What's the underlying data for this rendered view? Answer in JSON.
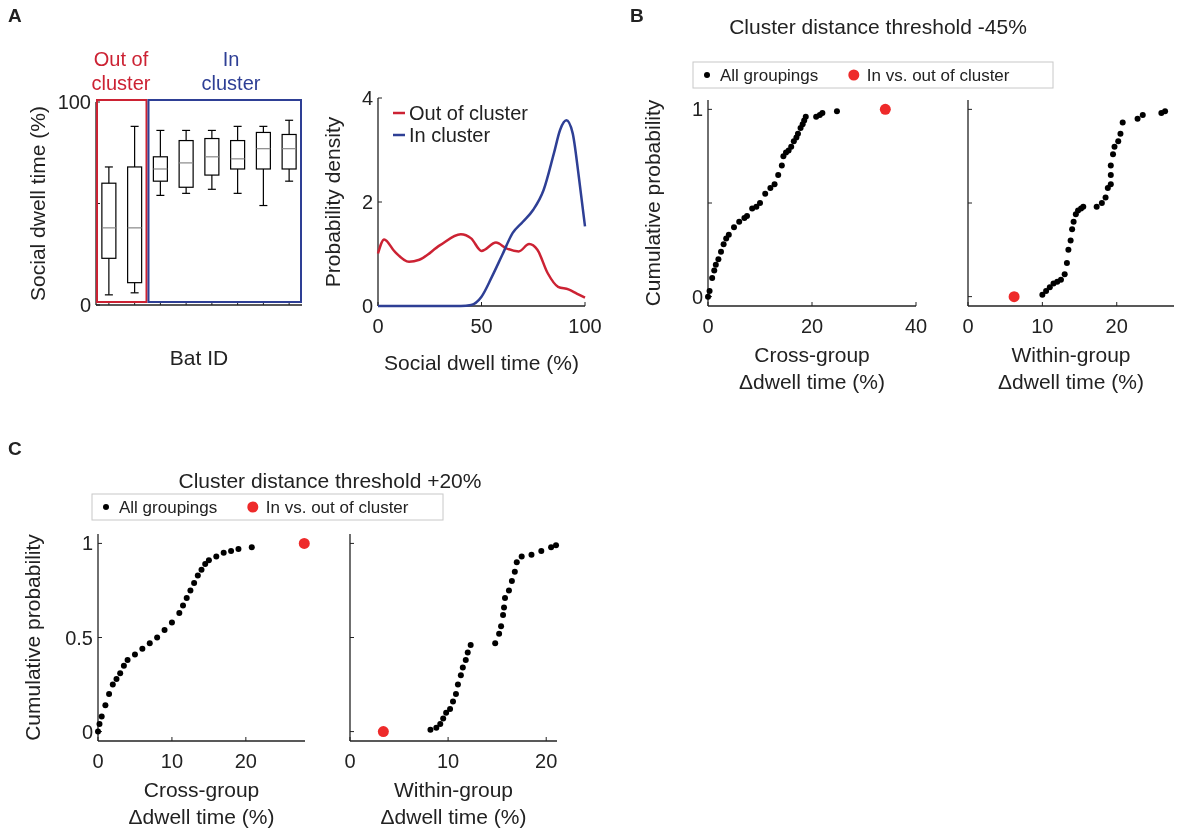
{
  "chart_data": [
    {
      "type": "box",
      "xlabel": "Bat ID",
      "ylabel": "Social dwell time (%)",
      "annotations": [
        "A",
        "Out of cluster",
        "In cluster"
      ],
      "categories": [
        null,
        null,
        null,
        null,
        null,
        null,
        null,
        null
      ],
      "ylim": [
        0,
        100
      ],
      "yticks": [
        0,
        {
          "value": 50,
          "label": null
        },
        100
      ],
      "boxes": [
        {
          "low": 5,
          "q1": 23,
          "median": 38,
          "q3": 60,
          "high": 68
        },
        {
          "low": 6,
          "q1": 11,
          "median": 38,
          "q3": 68,
          "high": 88
        },
        {
          "low": 54,
          "q1": 61,
          "median": 67,
          "q3": 73,
          "high": 86
        },
        {
          "low": 55,
          "q1": 58,
          "median": 70,
          "q3": 81,
          "high": 86
        },
        {
          "low": 57,
          "q1": 64,
          "median": 73,
          "q3": 82,
          "high": 86
        },
        {
          "low": 55,
          "q1": 67,
          "median": 72,
          "q3": 81,
          "high": 88
        },
        {
          "low": 49,
          "q1": 67,
          "median": 77,
          "q3": 85,
          "high": 88
        },
        {
          "low": 61,
          "q1": 67,
          "median": 77,
          "q3": 84,
          "high": 91
        }
      ]
    },
    {
      "type": "line",
      "xlabel": "Social dwell time (%)",
      "ylabel": "Probability density",
      "xlim": [
        0,
        100
      ],
      "ylim": [
        0,
        4
      ],
      "xticks": [
        0,
        50,
        100
      ],
      "yticks": [
        0,
        2,
        4
      ],
      "legend": "top",
      "series": [
        {
          "name": "Out of cluster",
          "color": "#cc2233",
          "x": [
            0,
            3,
            8,
            15,
            20,
            30,
            40,
            45,
            50,
            57,
            62,
            68,
            73,
            77,
            82,
            87,
            92,
            96,
            100
          ],
          "values": [
            1.01,
            1.28,
            1.05,
            0.85,
            0.89,
            1.17,
            1.38,
            1.3,
            1.06,
            1.22,
            1.11,
            1.05,
            1.19,
            1.08,
            0.63,
            0.37,
            0.32,
            0.24,
            0.16
          ]
        },
        {
          "name": "In cluster",
          "color": "#2e3f95",
          "x": [
            0,
            40,
            45,
            50,
            55,
            60,
            65,
            70,
            75,
            80,
            85,
            88,
            91,
            94,
            97,
            100
          ],
          "values": [
            0,
            0,
            0.02,
            0.18,
            0.56,
            0.98,
            1.4,
            1.62,
            1.85,
            2.23,
            2.94,
            3.39,
            3.57,
            3.33,
            2.49,
            1.53
          ]
        }
      ]
    },
    {
      "type": "scatter",
      "title": "Cluster distance threshold -45%",
      "xlabel": "Cross-group Δdwell time (%)",
      "ylabel": "Cumulative probability",
      "annotations": [
        "B"
      ],
      "xlim": [
        0,
        40
      ],
      "ylim": [
        -0.05,
        1.05
      ],
      "xticks": [
        0,
        20,
        40
      ],
      "yticks": [
        0,
        {
          "value": 0.5,
          "label": null
        },
        1
      ],
      "legend": "top",
      "marker": "circle",
      "series": [
        {
          "name": "All groupings",
          "color": "#000000",
          "x": [
            0,
            0.3,
            0.8,
            1.2,
            1.5,
            2,
            2.5,
            3,
            3.5,
            4,
            5,
            6,
            7,
            7.5,
            8.5,
            9.3,
            10,
            11,
            12,
            12.8,
            13.5,
            14.2,
            14.5,
            15,
            15.5,
            16,
            16.5,
            17,
            17.3,
            17.8,
            18.2,
            18.5,
            18.8,
            20.8,
            21.5,
            22,
            24.8
          ],
          "values": [
            0,
            0.03,
            0.1,
            0.14,
            0.17,
            0.2,
            0.24,
            0.28,
            0.31,
            0.33,
            0.37,
            0.4,
            0.42,
            0.43,
            0.47,
            0.48,
            0.5,
            0.55,
            0.58,
            0.6,
            0.65,
            0.7,
            0.75,
            0.77,
            0.78,
            0.8,
            0.83,
            0.85,
            0.87,
            0.9,
            0.92,
            0.94,
            0.96,
            0.96,
            0.97,
            0.98,
            0.99
          ]
        },
        {
          "name": "In vs. out of cluster",
          "color": "#ee2a2a",
          "x": [
            34.1
          ],
          "values": [
            1
          ]
        }
      ]
    },
    {
      "type": "scatter",
      "xlabel": "Within-group Δdwell time (%)",
      "xlim": [
        0,
        27.7
      ],
      "ylim": [
        -0.05,
        1.05
      ],
      "xticks": [
        0,
        10,
        20
      ],
      "yticks": [
        {
          "value": 0,
          "label": null
        },
        {
          "value": 0.5,
          "label": null
        },
        {
          "value": 1,
          "label": null
        }
      ],
      "tick_labels": "x",
      "marker": "circle",
      "series": [
        {
          "color": "#000000",
          "x": [
            10,
            10.5,
            11,
            11.5,
            12,
            12.5,
            13,
            13.3,
            13.5,
            13.8,
            14,
            14.2,
            14.5,
            14.8,
            15.2,
            15.5,
            17.3,
            18,
            18.5,
            18.8,
            19.2,
            19.2,
            19.2,
            19.5,
            19.7,
            20.2,
            20.5,
            20.8,
            22.8,
            23.5,
            26,
            26.5
          ],
          "values": [
            0.01,
            0.03,
            0.05,
            0.07,
            0.08,
            0.09,
            0.12,
            0.18,
            0.25,
            0.3,
            0.36,
            0.4,
            0.44,
            0.46,
            0.47,
            0.48,
            0.48,
            0.5,
            0.53,
            0.58,
            0.6,
            0.65,
            0.7,
            0.76,
            0.8,
            0.83,
            0.87,
            0.93,
            0.95,
            0.97,
            0.98,
            0.99
          ]
        },
        {
          "color": "#ee2a2a",
          "x": [
            6.2
          ],
          "values": [
            0
          ]
        }
      ]
    },
    {
      "type": "scatter",
      "title": "Cluster distance threshold +20%",
      "xlabel": "Cross-group Δdwell time (%)",
      "ylabel": "Cumulative probability",
      "annotations": [
        "C"
      ],
      "xlim": [
        0,
        28
      ],
      "ylim": [
        -0.05,
        1.05
      ],
      "xticks": [
        0,
        10,
        20
      ],
      "yticks": [
        0,
        0.5,
        1
      ],
      "legend": "top",
      "marker": "circle",
      "series": [
        {
          "name": "All groupings",
          "color": "#000000",
          "x": [
            0,
            0.2,
            0.5,
            1,
            1.5,
            2,
            2.5,
            3,
            3.5,
            4,
            5,
            6,
            7,
            8,
            9,
            10,
            11,
            11.5,
            12,
            12.5,
            13,
            13.5,
            14,
            14.5,
            15,
            16,
            17,
            18,
            19,
            20.8
          ],
          "values": [
            0,
            0.04,
            0.08,
            0.14,
            0.2,
            0.25,
            0.28,
            0.31,
            0.35,
            0.38,
            0.41,
            0.44,
            0.47,
            0.5,
            0.54,
            0.58,
            0.63,
            0.67,
            0.71,
            0.75,
            0.79,
            0.83,
            0.86,
            0.89,
            0.91,
            0.93,
            0.95,
            0.96,
            0.97,
            0.98
          ]
        },
        {
          "name": "In vs. out of cluster",
          "color": "#ee2a2a",
          "x": [
            27.9
          ],
          "values": [
            1
          ]
        }
      ]
    },
    {
      "type": "scatter",
      "xlabel": "Within-group Δdwell time (%)",
      "xlim": [
        0,
        21.1
      ],
      "ylim": [
        -0.05,
        1.05
      ],
      "xticks": [
        0,
        10,
        20
      ],
      "yticks": [
        {
          "value": 0,
          "label": null
        },
        {
          "value": 0.5,
          "label": null
        },
        {
          "value": 1,
          "label": null
        }
      ],
      "tick_labels": "x",
      "marker": "circle",
      "series": [
        {
          "color": "#000000",
          "x": [
            8.2,
            8.8,
            9.2,
            9.5,
            9.8,
            10.2,
            10.5,
            10.8,
            11,
            11.3,
            11.5,
            11.8,
            12,
            12.3,
            14.8,
            15.2,
            15.4,
            15.6,
            15.7,
            15.8,
            16.2,
            16.5,
            16.8,
            17,
            17.5,
            18.5,
            19.5,
            20.5,
            21
          ],
          "values": [
            0.01,
            0.02,
            0.04,
            0.07,
            0.1,
            0.12,
            0.16,
            0.2,
            0.25,
            0.3,
            0.34,
            0.38,
            0.42,
            0.46,
            0.47,
            0.52,
            0.56,
            0.62,
            0.66,
            0.71,
            0.75,
            0.8,
            0.85,
            0.9,
            0.93,
            0.94,
            0.96,
            0.98,
            0.99
          ]
        },
        {
          "color": "#ee2a2a",
          "x": [
            3.4
          ],
          "values": [
            0
          ]
        }
      ]
    }
  ]
}
